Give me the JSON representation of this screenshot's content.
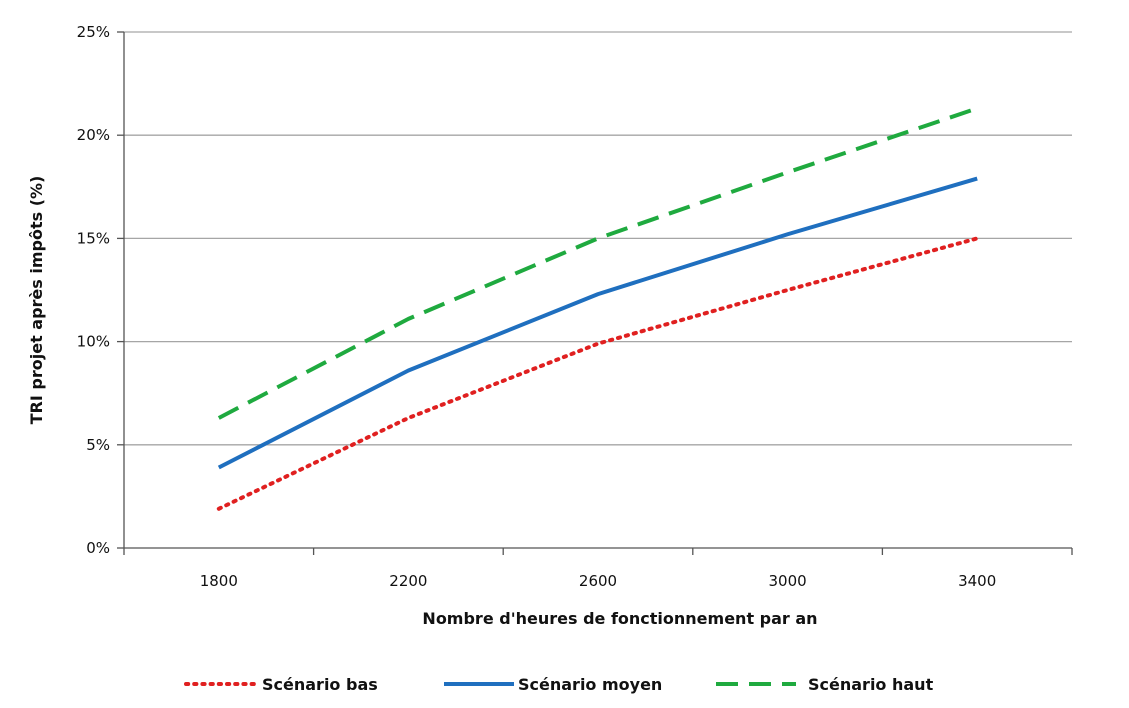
{
  "chart_data": {
    "type": "line",
    "title": "",
    "xlabel": "Nombre d'heures de fonctionnement par an",
    "ylabel": "TRI projet après impôts (%)",
    "x": [
      1800,
      2200,
      2600,
      3000,
      3400
    ],
    "xlim": [
      1600,
      3600
    ],
    "ylim": [
      0,
      25
    ],
    "y_ticks": [
      0,
      5,
      10,
      15,
      20,
      25
    ],
    "y_tick_labels": [
      "0%",
      "5%",
      "10%",
      "15%",
      "20%",
      "25%"
    ],
    "x_tick_labels": [
      "1800",
      "2200",
      "2600",
      "3000",
      "3400"
    ],
    "grid": "horizontal",
    "legend_position": "bottom",
    "series": [
      {
        "name": "Scénario bas",
        "values": [
          1.9,
          6.3,
          9.9,
          12.5,
          15.0
        ],
        "color": "#e02020",
        "style": "dotted"
      },
      {
        "name": "Scénario moyen",
        "values": [
          3.9,
          8.6,
          12.3,
          15.2,
          17.9
        ],
        "color": "#1f6fbf",
        "style": "solid"
      },
      {
        "name": "Scénario haut",
        "values": [
          6.3,
          11.1,
          15.0,
          18.2,
          21.3
        ],
        "color": "#1faa3f",
        "style": "dashed"
      }
    ]
  }
}
